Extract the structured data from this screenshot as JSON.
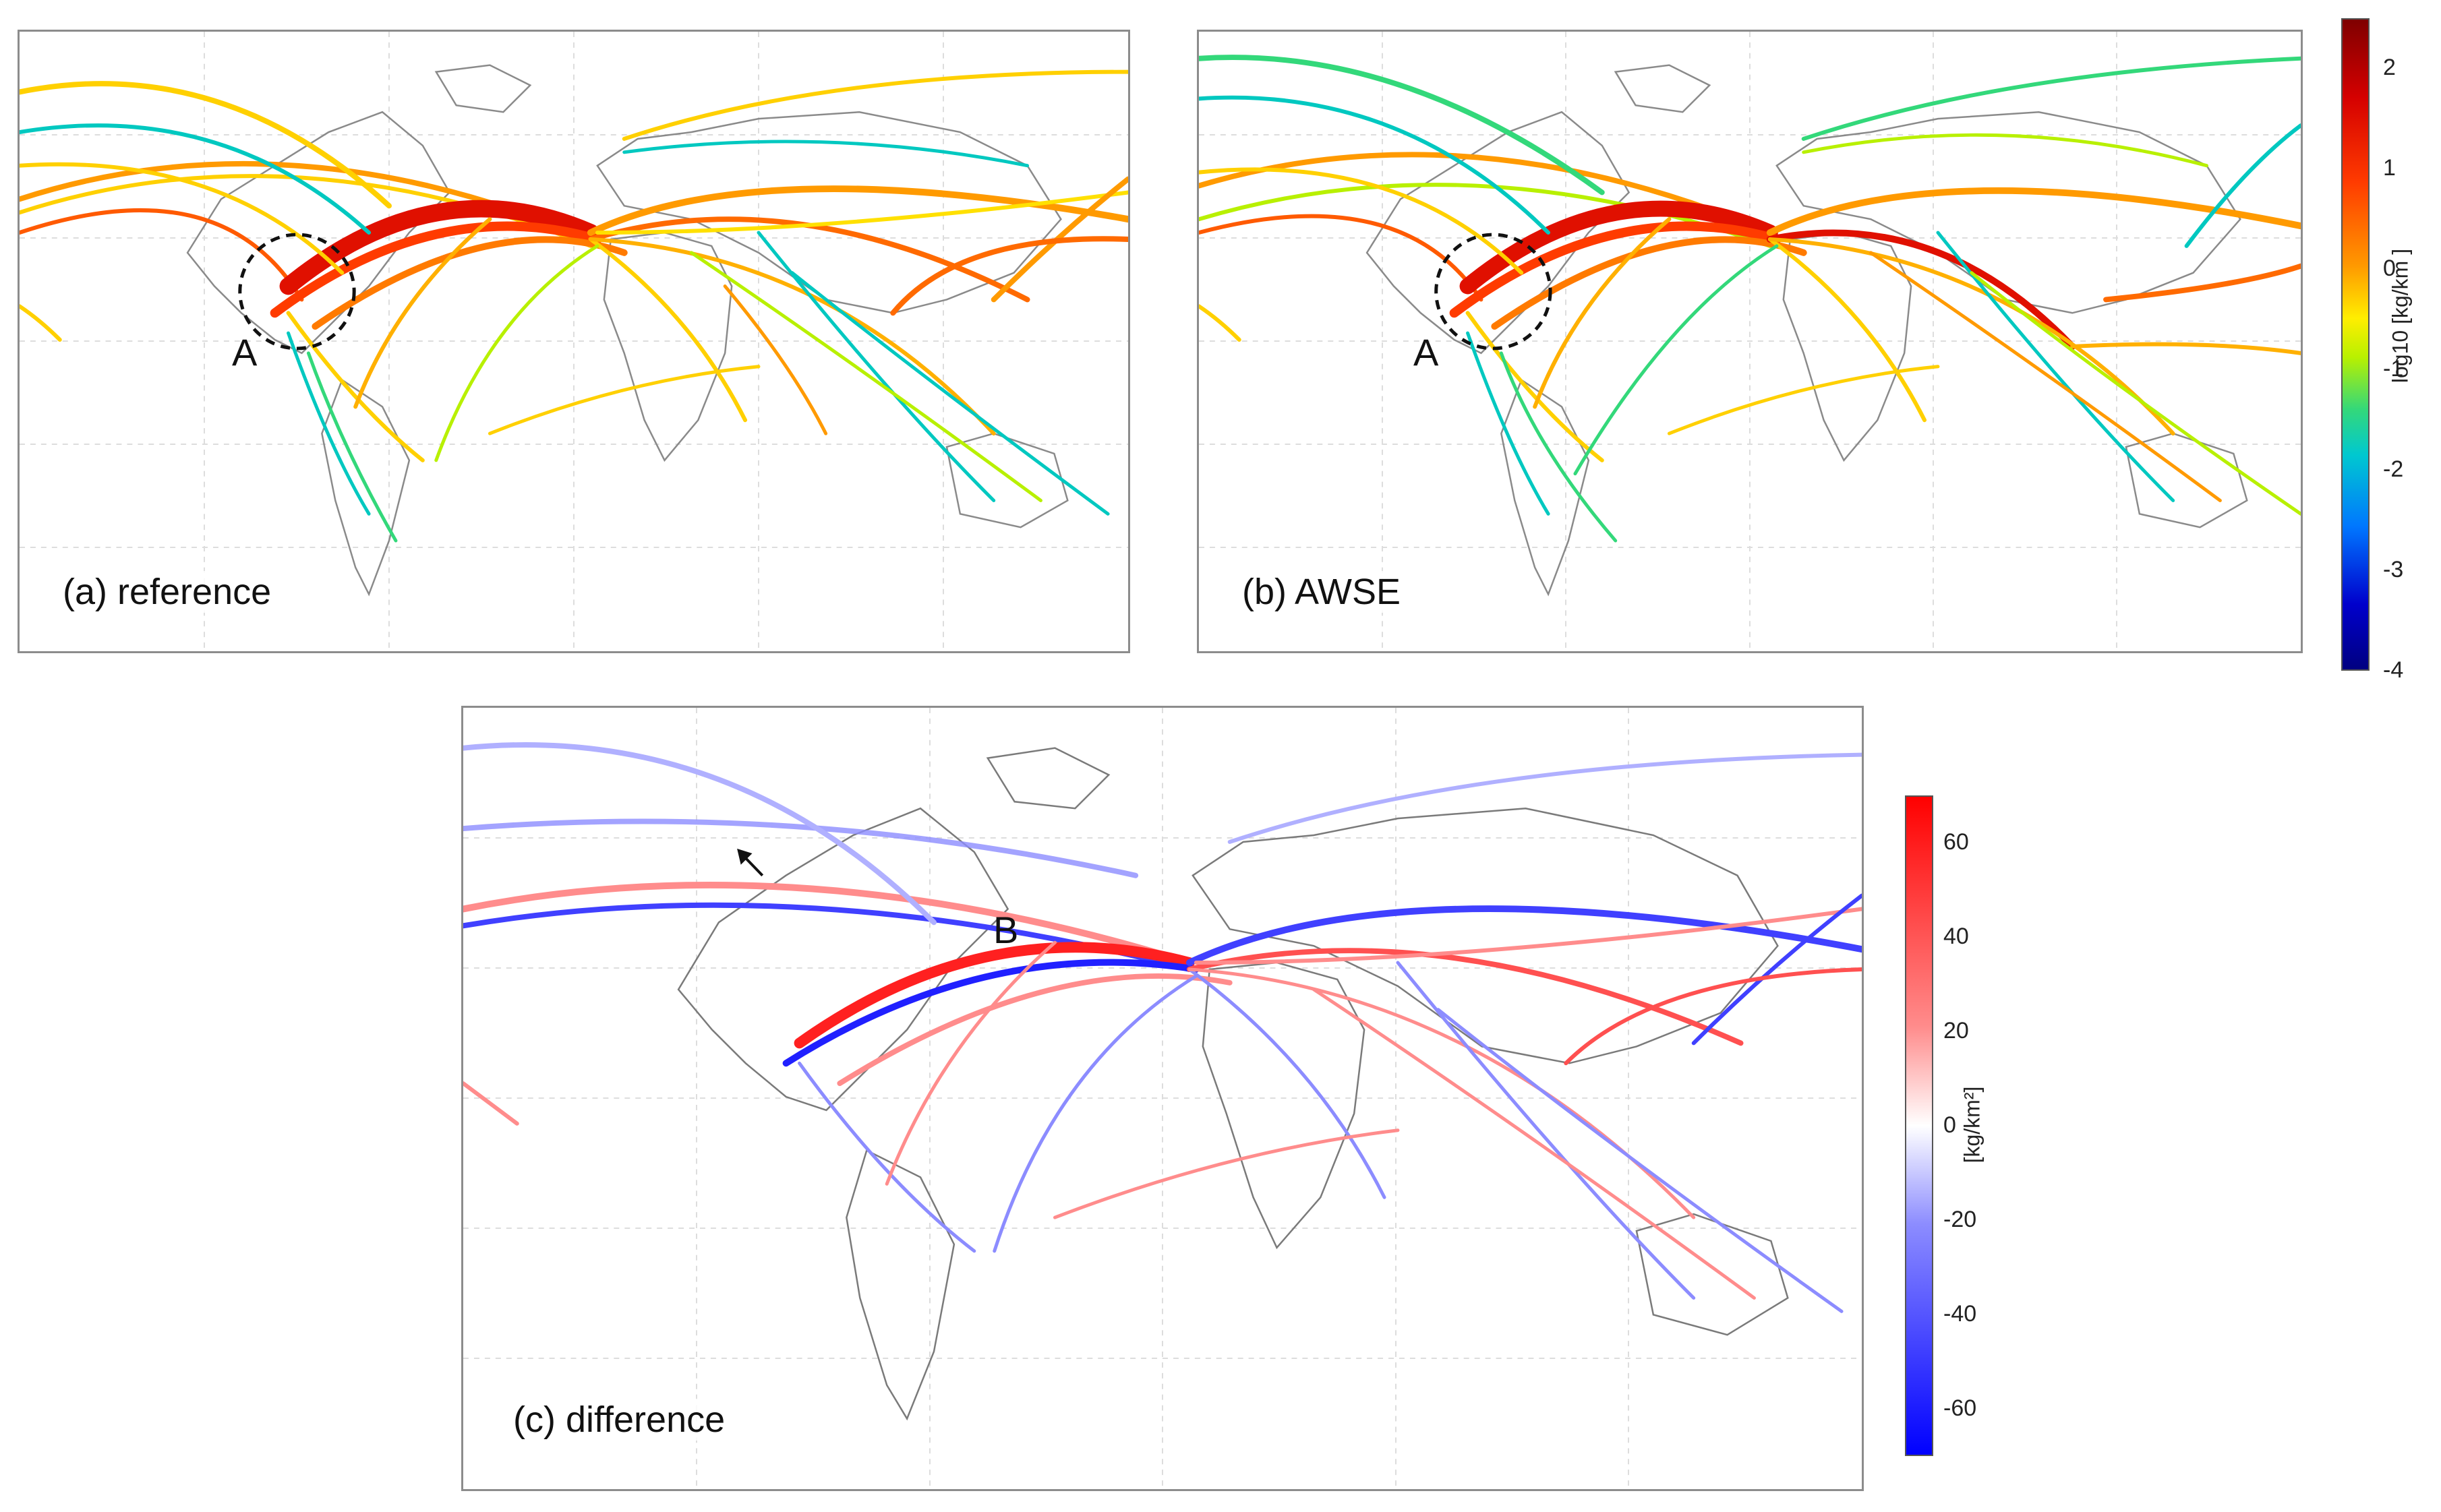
{
  "panels": {
    "a": {
      "label": "(a) reference",
      "marker": "A"
    },
    "b": {
      "label": "(b) AWSE",
      "marker": "A"
    },
    "c": {
      "label": "(c) difference",
      "marker": "B"
    }
  },
  "colorbar_top": {
    "title": "log10 [kg/km ]",
    "ticks": [
      "2",
      "1",
      "0",
      "-1",
      "-2",
      "-3",
      "-4"
    ],
    "range": [
      -4,
      2.5
    ],
    "colormap": "jet"
  },
  "colorbar_bottom": {
    "title": "[kg/km²]",
    "ticks": [
      "60",
      "40",
      "20",
      "0",
      "-20",
      "-40",
      "-60"
    ],
    "range": [
      -70,
      70
    ],
    "colormap": "blue-white-red"
  },
  "colors": {
    "frame": "#8c8c8c",
    "coastline": "#7a7a7a",
    "grid": "#d9d9d9",
    "high": "#e01000",
    "mid": "#ffb000",
    "low": "#00c8c0",
    "diff_pos": "#ff2020",
    "diff_neg": "#2020ff"
  }
}
